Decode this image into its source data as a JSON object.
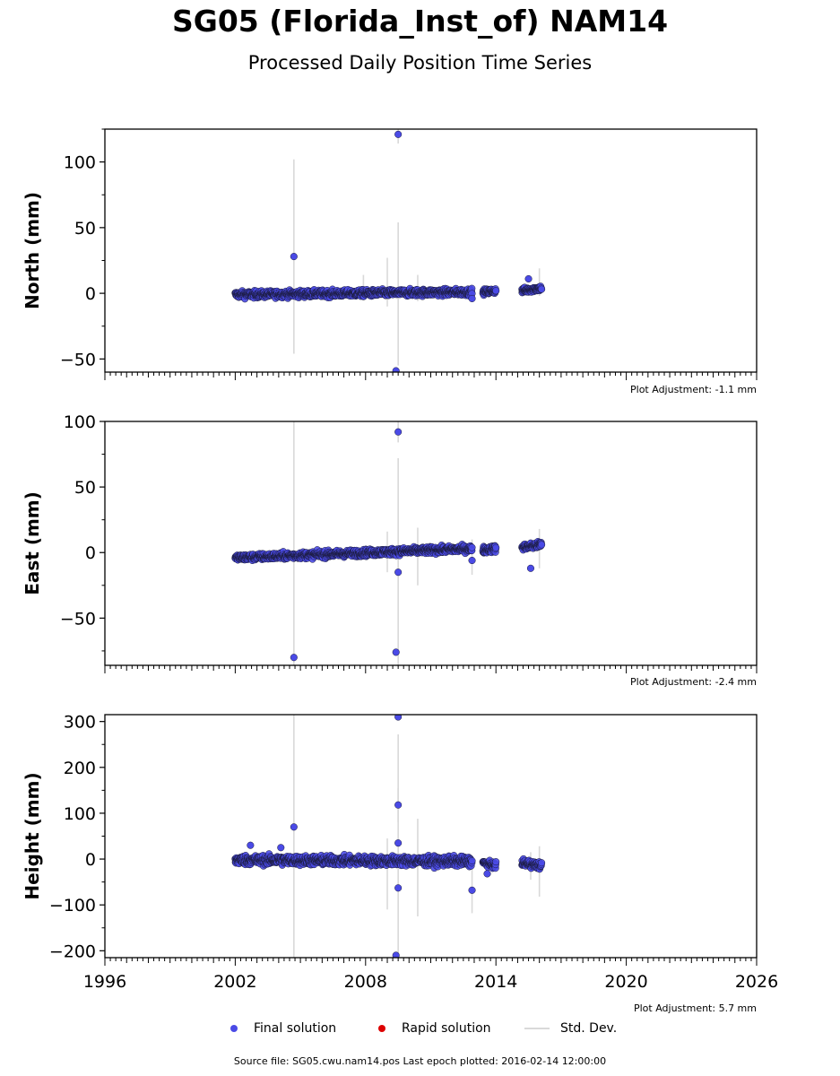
{
  "title": "SG05 (Florida_Inst_of) NAM14",
  "subtitle": "Processed Daily Position Time Series",
  "legend": {
    "final": "Final solution",
    "rapid": "Rapid solution",
    "std": "Std. Dev.",
    "final_color": "#4a4ae6",
    "rapid_color": "#dd0000",
    "std_color": "#d9d9d9"
  },
  "source": "Source file: SG05.cwu.nam14.pos  Last epoch plotted: 2016-02-14 12:00:00",
  "chart_data": [
    {
      "type": "scatter",
      "ylabel": "North (mm)",
      "xlim": [
        1996,
        2026
      ],
      "ylim": [
        -60,
        125
      ],
      "yticks": [
        -50,
        0,
        50,
        100
      ],
      "xticks": [
        1996,
        2002,
        2008,
        2014,
        2020,
        2026
      ],
      "adjustment": "Plot Adjustment: -1.1 mm",
      "segments": [
        {
          "x": [
            2002.0,
            2012.9
          ],
          "y": [
            -1,
            1
          ],
          "spread": 2.5
        },
        {
          "x": [
            2013.4,
            2014.0
          ],
          "y": [
            1,
            2
          ],
          "spread": 2
        },
        {
          "x": [
            2015.2,
            2016.1
          ],
          "y": [
            2,
            4
          ],
          "spread": 2
        }
      ],
      "outliers": [
        {
          "x": 2004.7,
          "y": 28
        },
        {
          "x": 2009.5,
          "y": 121
        },
        {
          "x": 2009.4,
          "y": -59
        },
        {
          "x": 2015.5,
          "y": 11
        },
        {
          "x": 2012.9,
          "y": -4
        }
      ],
      "errorbars": [
        {
          "x": 2004.7,
          "lo": -46,
          "hi": 102
        },
        {
          "x": 2009.5,
          "lo": -55,
          "hi": 54
        },
        {
          "x": 2009.5,
          "lo": 114,
          "hi": 125
        },
        {
          "x": 2009.0,
          "lo": -10,
          "hi": 27
        },
        {
          "x": 2007.9,
          "lo": -5,
          "hi": 14
        },
        {
          "x": 2010.4,
          "lo": -6,
          "hi": 14
        },
        {
          "x": 2016.0,
          "lo": -2,
          "hi": 19
        }
      ]
    },
    {
      "type": "scatter",
      "ylabel": "East (mm)",
      "xlim": [
        1996,
        2026
      ],
      "ylim": [
        -86,
        100
      ],
      "yticks": [
        -50,
        0,
        50,
        100
      ],
      "xticks": [
        1996,
        2002,
        2008,
        2014,
        2020,
        2026
      ],
      "adjustment": "Plot Adjustment: -2.4 mm",
      "segments": [
        {
          "x": [
            2002.0,
            2012.9
          ],
          "y": [
            -4,
            3
          ],
          "spread": 2.5
        },
        {
          "x": [
            2013.4,
            2014.0
          ],
          "y": [
            2,
            3
          ],
          "spread": 2.5
        },
        {
          "x": [
            2015.2,
            2016.1
          ],
          "y": [
            4,
            6
          ],
          "spread": 2.5
        }
      ],
      "outliers": [
        {
          "x": 2004.7,
          "y": -80
        },
        {
          "x": 2009.5,
          "y": 92
        },
        {
          "x": 2009.4,
          "y": -76
        },
        {
          "x": 2009.5,
          "y": -15
        },
        {
          "x": 2015.6,
          "y": -12
        },
        {
          "x": 2012.9,
          "y": -6
        }
      ],
      "errorbars": [
        {
          "x": 2004.7,
          "lo": -86,
          "hi": 100
        },
        {
          "x": 2009.5,
          "lo": -86,
          "hi": 72
        },
        {
          "x": 2009.5,
          "lo": 84,
          "hi": 100
        },
        {
          "x": 2009.0,
          "lo": -15,
          "hi": 16
        },
        {
          "x": 2010.4,
          "lo": -25,
          "hi": 19
        },
        {
          "x": 2012.9,
          "lo": -17,
          "hi": 10
        },
        {
          "x": 2016.0,
          "lo": -12,
          "hi": 18
        }
      ]
    },
    {
      "type": "scatter",
      "ylabel": "Height (mm)",
      "xlim": [
        1996,
        2026
      ],
      "ylim": [
        -215,
        315
      ],
      "yticks": [
        -200,
        -100,
        0,
        100,
        200,
        300
      ],
      "xticks": [
        1996,
        2002,
        2008,
        2014,
        2020,
        2026
      ],
      "adjustment": "Plot Adjustment: 5.7 mm",
      "segments": [
        {
          "x": [
            2002.0,
            2012.9
          ],
          "y": [
            -2,
            -5
          ],
          "spread": 10
        },
        {
          "x": [
            2013.4,
            2014.0
          ],
          "y": [
            -8,
            -15
          ],
          "spread": 6
        },
        {
          "x": [
            2015.2,
            2016.1
          ],
          "y": [
            -8,
            -15
          ],
          "spread": 8
        }
      ],
      "outliers": [
        {
          "x": 2004.7,
          "y": 70
        },
        {
          "x": 2009.5,
          "y": 310
        },
        {
          "x": 2009.5,
          "y": 118
        },
        {
          "x": 2009.5,
          "y": 35
        },
        {
          "x": 2009.5,
          "y": -63
        },
        {
          "x": 2009.4,
          "y": -210
        },
        {
          "x": 2012.9,
          "y": -68
        },
        {
          "x": 2013.6,
          "y": -32
        },
        {
          "x": 2002.7,
          "y": 30
        },
        {
          "x": 2004.1,
          "y": 25
        }
      ],
      "errorbars": [
        {
          "x": 2004.7,
          "lo": -215,
          "hi": 315
        },
        {
          "x": 2009.5,
          "lo": -205,
          "hi": 272
        },
        {
          "x": 2009.5,
          "lo": 80,
          "hi": 155
        },
        {
          "x": 2009.0,
          "lo": -110,
          "hi": 45
        },
        {
          "x": 2010.4,
          "lo": -125,
          "hi": 88
        },
        {
          "x": 2012.9,
          "lo": -118,
          "hi": -20
        },
        {
          "x": 2016.0,
          "lo": -82,
          "hi": 28
        },
        {
          "x": 2015.6,
          "lo": -45,
          "hi": 15
        }
      ]
    }
  ]
}
